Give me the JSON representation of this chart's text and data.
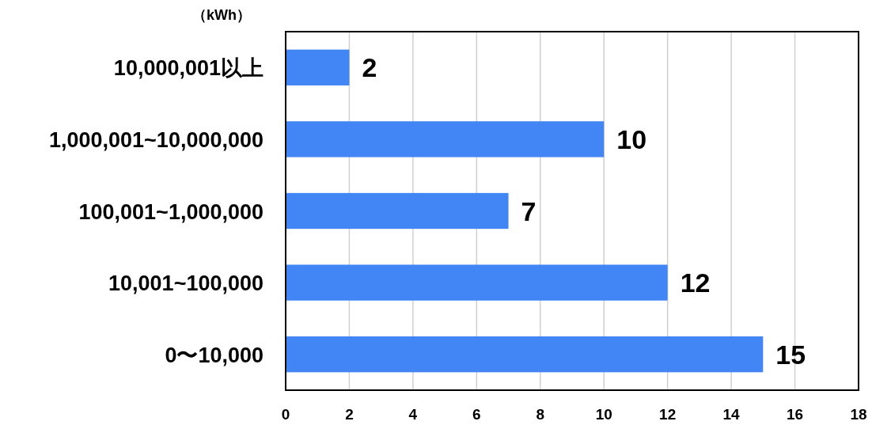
{
  "chart_data": {
    "type": "bar",
    "orientation": "horizontal",
    "ylabel": "（kWh）",
    "categories": [
      "10,000,001以上",
      "1,000,001~10,000,000",
      "100,001~1,000,000",
      "10,001~100,000",
      "0〜10,000"
    ],
    "values": [
      2,
      10,
      7,
      12,
      15
    ],
    "color": "#4285f4",
    "xlim": [
      0,
      18
    ],
    "xticks": [
      0,
      2,
      4,
      6,
      8,
      10,
      12,
      14,
      16,
      18
    ],
    "grid": "x",
    "data_labels": true
  }
}
